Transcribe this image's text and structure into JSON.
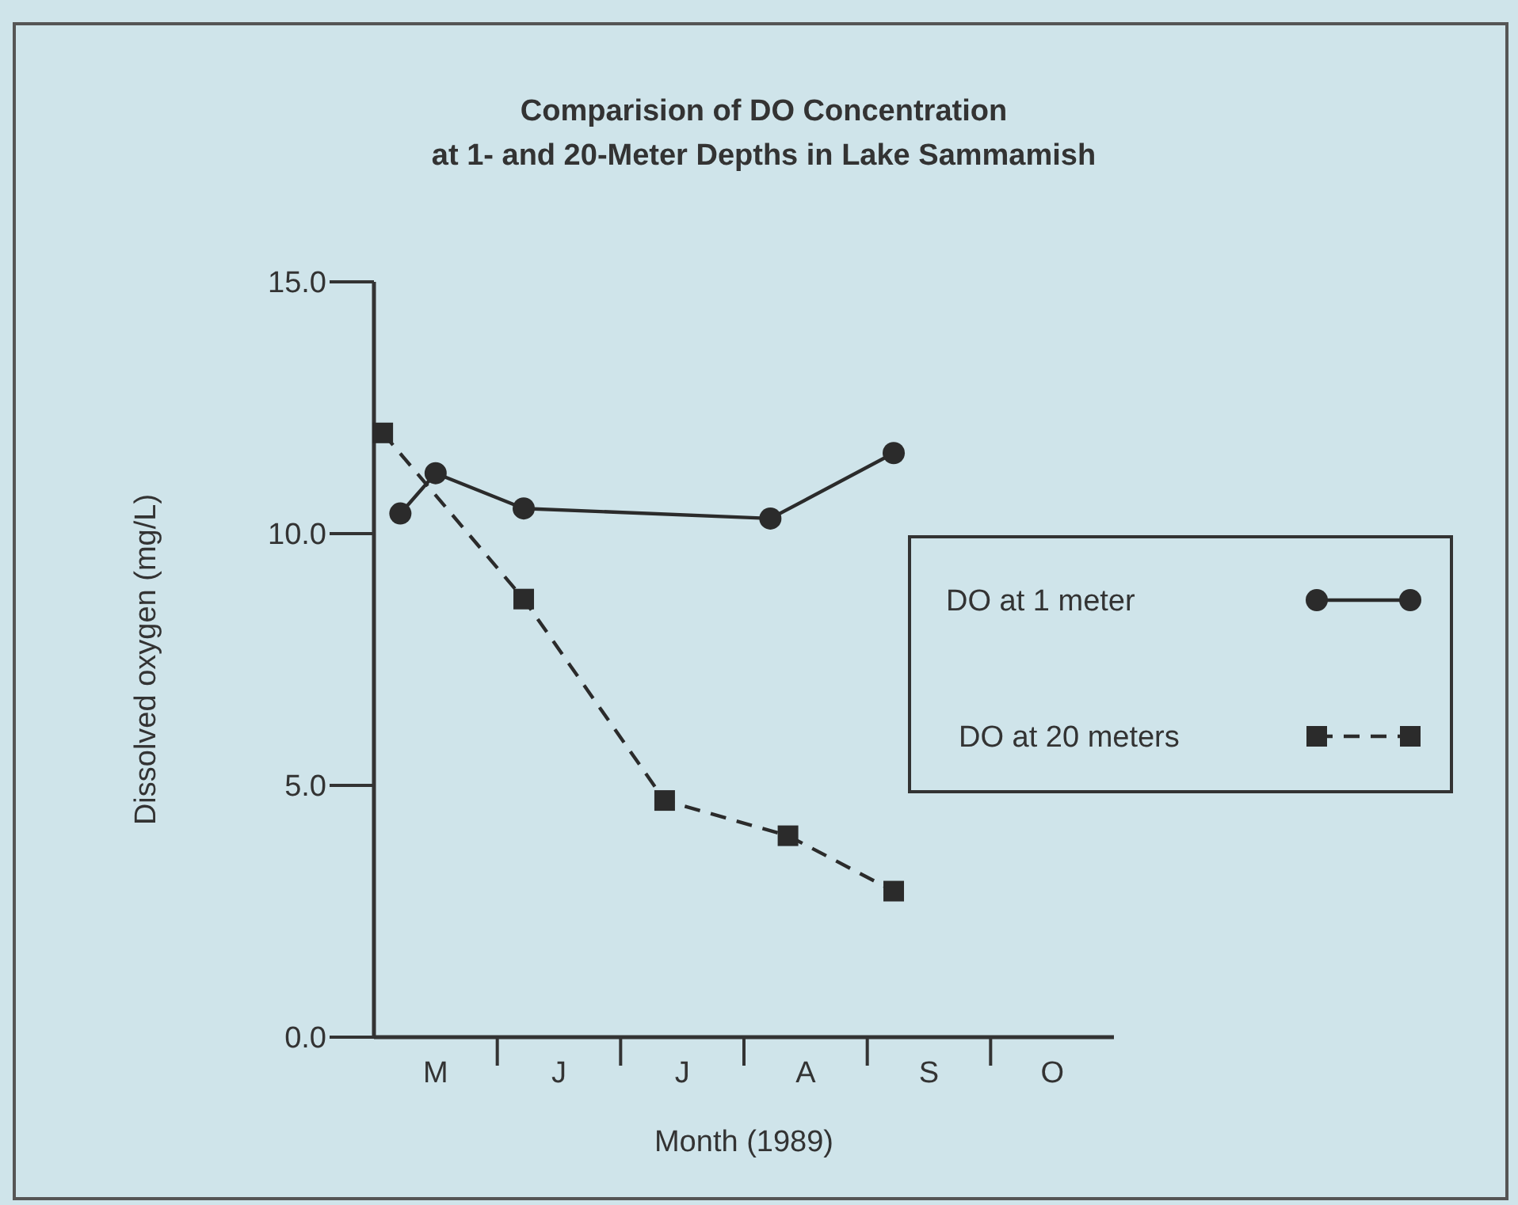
{
  "chart_data": {
    "type": "line",
    "title": "Comparision of DO Concentration\nat 1-  and 20-Meter Depths in Lake Sammamish",
    "xlabel": "Month (1989)",
    "ylabel": "Dissolved oxygen (mg/L)",
    "categories": [
      null,
      null,
      null,
      "M",
      null,
      null,
      null,
      null,
      null,
      null,
      "J",
      null,
      null,
      null,
      null,
      null,
      null,
      "J",
      null,
      null,
      null,
      null,
      null,
      null,
      "A",
      null,
      null,
      null,
      null,
      null,
      null,
      "S",
      null,
      null,
      null,
      null,
      null,
      null,
      "O",
      null,
      null,
      null
    ],
    "ylim": [
      0,
      15
    ],
    "yticks": [
      {
        "value": 0,
        "label": "0.0"
      },
      {
        "value": 5,
        "label": "5.0"
      },
      {
        "value": 10,
        "label": "10.0"
      },
      {
        "value": 15,
        "label": "15.0"
      }
    ],
    "grid": false,
    "legend": "right",
    "series": [
      {
        "name": "DO at 1 meter",
        "color": "#2b2b2b",
        "marker": "circle",
        "line_style": "solid",
        "values": [
          null,
          10.4,
          null,
          11.2,
          null,
          null,
          null,
          null,
          10.5,
          null,
          null,
          null,
          null,
          null,
          null,
          null,
          null,
          null,
          null,
          null,
          null,
          null,
          10.3,
          null,
          null,
          null,
          null,
          null,
          null,
          11.6,
          null,
          null,
          null,
          null,
          null,
          null,
          null,
          null,
          null,
          null,
          null,
          null
        ]
      },
      {
        "name": "DO at 20 meters",
        "color": "#2b2b2b",
        "marker": "square",
        "line_style": "dashed",
        "values": [
          12.0,
          null,
          null,
          null,
          null,
          null,
          null,
          null,
          8.7,
          null,
          null,
          null,
          null,
          null,
          null,
          null,
          4.7,
          null,
          null,
          null,
          null,
          null,
          null,
          4.0,
          null,
          null,
          null,
          null,
          null,
          2.9,
          null,
          null,
          null,
          null,
          null,
          null,
          null,
          null,
          null,
          null,
          null,
          null
        ]
      }
    ]
  }
}
